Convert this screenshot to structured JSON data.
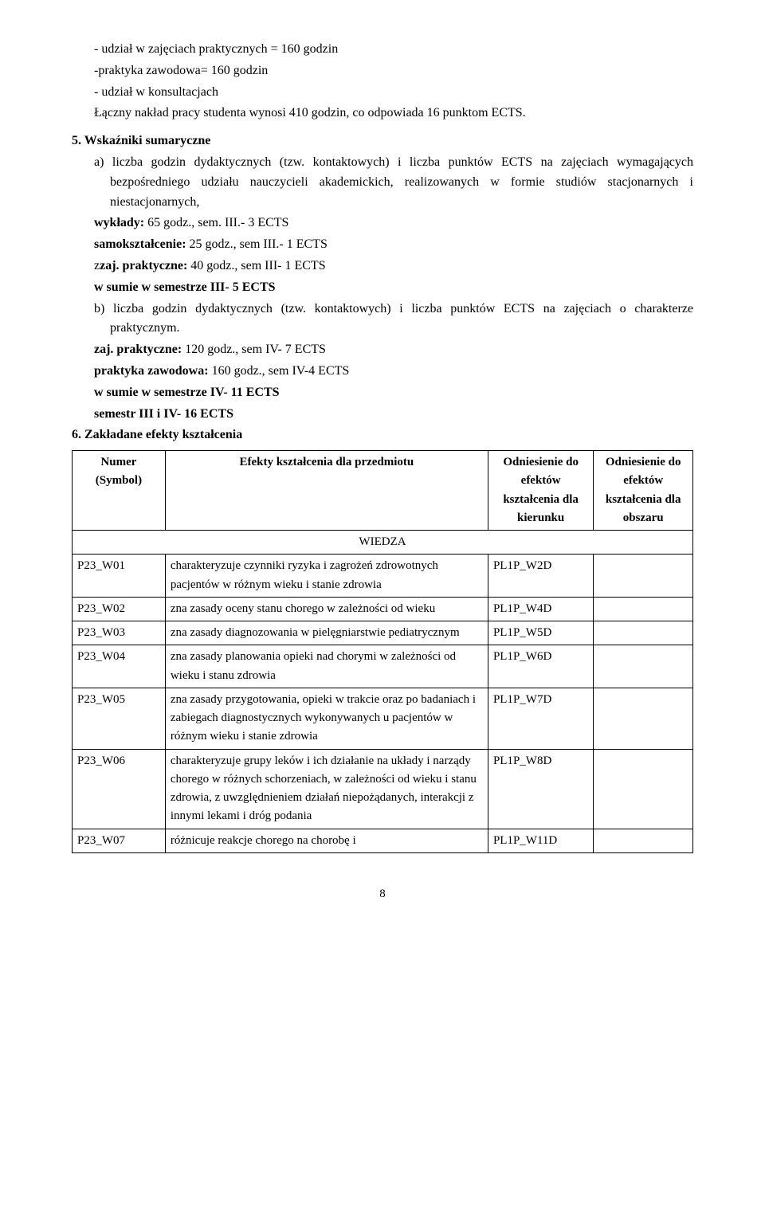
{
  "lines": {
    "l1": "- udział w zajęciach praktycznych = 160 godzin",
    "l2": "-praktyka zawodowa= 160 godzin",
    "l3": "- udział w konsultacjach",
    "l4": "Łączny nakład pracy studenta wynosi 410 godzin, co odpowiada 16 punktom ECTS.",
    "l5": "5. Wskaźniki sumaryczne",
    "l6": "a) liczba godzin dydaktycznych (tzw. kontaktowych) i liczba punktów ECTS na zajęciach wymagających bezpośredniego udziału nauczycieli akademickich, realizowanych w formie studiów stacjonarnych i niestacjonarnych,",
    "l7a": "wykłady:",
    "l7b": " 65 godz., sem. III.- 3 ECTS",
    "l8a": "samokształcenie:",
    "l8b": " 25 godz., sem III.- 1 ECTS",
    "l9a": "zaj. praktyczne:",
    "l9b": " 40 godz., sem III- 1 ECTS",
    "l9z": "z",
    "l10": "w sumie w semestrze III- 5 ECTS",
    "l11": "b) liczba godzin dydaktycznych (tzw. kontaktowych) i liczba punktów ECTS na zajęciach o charakterze praktycznym.",
    "l12a": "zaj. praktyczne:",
    "l12b": " 120 godz., sem IV- 7 ECTS",
    "l13a": "praktyka zawodowa: ",
    "l13b": "160 godz., sem IV-4 ECTS",
    "l14": "w sumie w semestrze IV- 11 ECTS",
    "l15": "semestr III i IV- 16 ECTS",
    "l16": "6. Zakładane efekty kształcenia"
  },
  "table": {
    "headers": {
      "h1": "Numer (Symbol)",
      "h2": "Efekty kształcenia dla przedmiotu",
      "h3": "Odniesienie do efektów kształcenia dla kierunku",
      "h4": "Odniesienie do efektów kształcenia dla obszaru"
    },
    "section": "WIEDZA",
    "rows": [
      {
        "num": "P23_W01",
        "eff": "charakteryzuje czynniki ryzyka i zagrożeń zdrowotnych pacjentów w różnym wieku i stanie zdrowia",
        "kier": "PL1P_W2D",
        "obs": ""
      },
      {
        "num": "P23_W02",
        "eff": "zna zasady oceny stanu chorego w zależności od wieku",
        "kier": "PL1P_W4D",
        "obs": ""
      },
      {
        "num": "P23_W03",
        "eff": "zna zasady diagnozowania w pielęgniarstwie pediatrycznym",
        "kier": "PL1P_W5D",
        "obs": ""
      },
      {
        "num": "P23_W04",
        "eff": "zna zasady planowania opieki nad chorymi w zależności od wieku i stanu zdrowia",
        "kier": "PL1P_W6D",
        "obs": ""
      },
      {
        "num": "P23_W05",
        "eff": "zna zasady przygotowania, opieki w trakcie oraz po badaniach i zabiegach diagnostycznych wykonywanych u pacjentów w różnym wieku i stanie zdrowia",
        "kier": "PL1P_W7D",
        "obs": ""
      },
      {
        "num": "P23_W06",
        "eff": "charakteryzuje grupy leków i ich działanie na układy i narządy chorego w różnych schorzeniach, w zależności od wieku i stanu zdrowia, z uwzględnieniem działań niepożądanych, interakcji z innymi lekami i dróg podania",
        "kier": "PL1P_W8D",
        "obs": ""
      },
      {
        "num": "P23_W07",
        "eff": "różnicuje reakcje chorego na chorobę i",
        "kier": "PL1P_W11D",
        "obs": ""
      }
    ]
  },
  "pageNumber": "8"
}
